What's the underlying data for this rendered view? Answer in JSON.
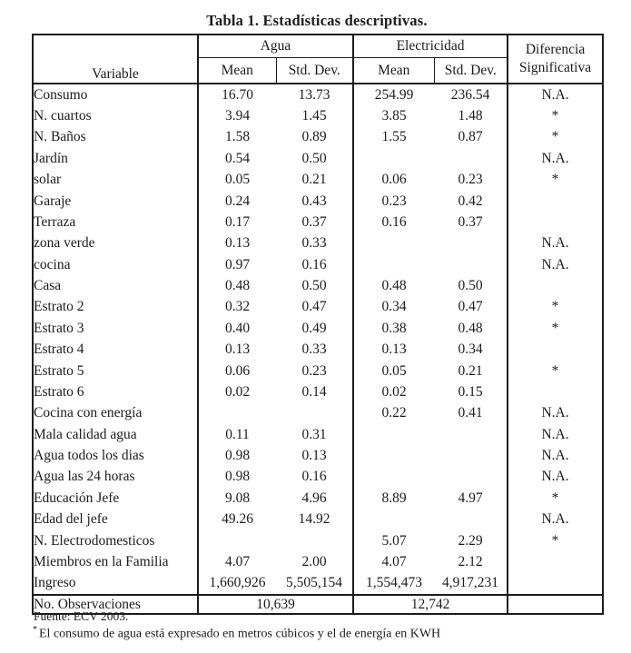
{
  "title": "Tabla 1. Estadísticas descriptivas.",
  "header": {
    "variable": "Variable",
    "agua": "Agua",
    "electricidad": "Electricidad",
    "diferencia_line1": "Diferencia",
    "diferencia_line2": "Significativa",
    "mean": "Mean",
    "std_dev": "Std. Dev."
  },
  "rows": [
    {
      "variable": "Consumo",
      "agua_mean": "16.70",
      "agua_std": "13.73",
      "elec_mean": "254.99",
      "elec_std": "236.54",
      "dif": "N.A."
    },
    {
      "variable": "N. cuartos",
      "agua_mean": "3.94",
      "agua_std": "1.45",
      "elec_mean": "3.85",
      "elec_std": "1.48",
      "dif": "*"
    },
    {
      "variable": "N. Baños",
      "agua_mean": "1.58",
      "agua_std": "0.89",
      "elec_mean": "1.55",
      "elec_std": "0.87",
      "dif": "*"
    },
    {
      "variable": "Jardín",
      "agua_mean": "0.54",
      "agua_std": "0.50",
      "elec_mean": "",
      "elec_std": "",
      "dif": "N.A."
    },
    {
      "variable": "solar",
      "agua_mean": "0.05",
      "agua_std": "0.21",
      "elec_mean": "0.06",
      "elec_std": "0.23",
      "dif": "*"
    },
    {
      "variable": "Garaje",
      "agua_mean": "0.24",
      "agua_std": "0.43",
      "elec_mean": "0.23",
      "elec_std": "0.42",
      "dif": ""
    },
    {
      "variable": "Terraza",
      "agua_mean": "0.17",
      "agua_std": "0.37",
      "elec_mean": "0.16",
      "elec_std": "0.37",
      "dif": ""
    },
    {
      "variable": "zona verde",
      "agua_mean": "0.13",
      "agua_std": "0.33",
      "elec_mean": "",
      "elec_std": "",
      "dif": "N.A."
    },
    {
      "variable": "cocina",
      "agua_mean": "0.97",
      "agua_std": "0.16",
      "elec_mean": "",
      "elec_std": "",
      "dif": "N.A."
    },
    {
      "variable": "Casa",
      "agua_mean": "0.48",
      "agua_std": "0.50",
      "elec_mean": "0.48",
      "elec_std": "0.50",
      "dif": ""
    },
    {
      "variable": "Estrato 2",
      "agua_mean": "0.32",
      "agua_std": "0.47",
      "elec_mean": "0.34",
      "elec_std": "0.47",
      "dif": "*"
    },
    {
      "variable": "Estrato 3",
      "agua_mean": "0.40",
      "agua_std": "0.49",
      "elec_mean": "0.38",
      "elec_std": "0.48",
      "dif": "*"
    },
    {
      "variable": "Estrato 4",
      "agua_mean": "0.13",
      "agua_std": "0.33",
      "elec_mean": "0.13",
      "elec_std": "0.34",
      "dif": ""
    },
    {
      "variable": "Estrato 5",
      "agua_mean": "0.06",
      "agua_std": "0.23",
      "elec_mean": "0.05",
      "elec_std": "0.21",
      "dif": "*"
    },
    {
      "variable": "Estrato 6",
      "agua_mean": "0.02",
      "agua_std": "0.14",
      "elec_mean": "0.02",
      "elec_std": "0.15",
      "dif": ""
    },
    {
      "variable": "Cocina con energía",
      "agua_mean": "",
      "agua_std": "",
      "elec_mean": "0.22",
      "elec_std": "0.41",
      "dif": "N.A."
    },
    {
      "variable": "Mala calidad agua",
      "agua_mean": "0.11",
      "agua_std": "0.31",
      "elec_mean": "",
      "elec_std": "",
      "dif": "N.A."
    },
    {
      "variable": "Agua todos los dias",
      "agua_mean": "0.98",
      "agua_std": "0.13",
      "elec_mean": "",
      "elec_std": "",
      "dif": "N.A."
    },
    {
      "variable": "Agua las 24 horas",
      "agua_mean": "0.98",
      "agua_std": "0.16",
      "elec_mean": "",
      "elec_std": "",
      "dif": "N.A."
    },
    {
      "variable": "Educación Jefe",
      "agua_mean": "9.08",
      "agua_std": "4.96",
      "elec_mean": "8.89",
      "elec_std": "4.97",
      "dif": "*"
    },
    {
      "variable": "Edad del jefe",
      "agua_mean": "49.26",
      "agua_std": "14.92",
      "elec_mean": "",
      "elec_std": "",
      "dif": "N.A."
    },
    {
      "variable": "N. Electrodomesticos",
      "agua_mean": "",
      "agua_std": "",
      "elec_mean": "5.07",
      "elec_std": "2.29",
      "dif": "*"
    },
    {
      "variable": "Miembros en la Familia",
      "agua_mean": "4.07",
      "agua_std": "2.00",
      "elec_mean": "4.07",
      "elec_std": "2.12",
      "dif": ""
    },
    {
      "variable": "Ingreso",
      "agua_mean": "1,660,926",
      "agua_std": "5,505,154",
      "elec_mean": "1,554,473",
      "elec_std": "4,917,231",
      "dif": ""
    }
  ],
  "observations": {
    "label": "No. Observaciones",
    "agua": "10,639",
    "electricidad": "12,742"
  },
  "footer": {
    "fuente": "Fuente: ECV 2003.",
    "footnote_marker": "*",
    "footnote": "El consumo de agua está expresado en metros cúbicos y el de energía en KWH"
  },
  "colors": {
    "text": "#1c1c1c",
    "border": "#1c1c1c",
    "background": "#ffffff"
  }
}
